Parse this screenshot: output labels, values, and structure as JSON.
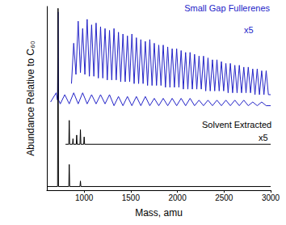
{
  "chart_data": {
    "type": "line",
    "x_label": "Mass, amu",
    "y_label": "Abundance Relative to C₆₀",
    "xlim": [
      600,
      3000
    ],
    "xticks": [
      1000,
      1500,
      2000,
      2500,
      3000
    ],
    "ylim": [
      0,
      100
    ],
    "tick_labels": "x",
    "grid": false,
    "annotations": [
      {
        "text": "Small Gap Fullerenes",
        "color": "#2323c8"
      },
      {
        "text": "x5",
        "color": "#2323c8"
      },
      {
        "text": "Solvent Extracted",
        "color": "#000000"
      },
      {
        "text": "x5",
        "color": "#000000"
      }
    ],
    "series": [
      {
        "color": "#2323c8",
        "x": [
          864,
          888,
          912,
          936,
          960,
          984,
          1008,
          1032,
          1056,
          1080,
          1104,
          1128,
          1152,
          1176,
          1200,
          1224,
          1248,
          1272,
          1296,
          1320,
          1344,
          1368,
          1392,
          1416,
          1440,
          1464,
          1488,
          1512,
          1536,
          1560,
          1584,
          1608,
          1632,
          1656,
          1680,
          1704,
          1728,
          1752,
          1776,
          1800,
          1824,
          1848,
          1872,
          1896,
          1920,
          1944,
          1968,
          1992,
          2016,
          2040,
          2064,
          2088,
          2112,
          2136,
          2160,
          2184,
          2208,
          2232,
          2256,
          2280,
          2304,
          2328,
          2352,
          2376,
          2400,
          2424,
          2448,
          2472,
          2496,
          2520,
          2544,
          2568,
          2592,
          2616,
          2640,
          2664,
          2688,
          2712,
          2736,
          2760,
          2784,
          2808,
          2832,
          2856,
          2880,
          2904,
          2928,
          2952,
          2976,
          3000
        ],
        "values": [
          58,
          80,
          63,
          92,
          64,
          88,
          63,
          93,
          62,
          90,
          62,
          91,
          61,
          89,
          61,
          88,
          60,
          87,
          60,
          88,
          60,
          86,
          59,
          85,
          59,
          84,
          59,
          85,
          58,
          83,
          58,
          82,
          58,
          81,
          57,
          82,
          57,
          80,
          57,
          79,
          57,
          79,
          56,
          78,
          56,
          77,
          56,
          77,
          56,
          76,
          55,
          75,
          55,
          75,
          55,
          74,
          55,
          73,
          55,
          73,
          54,
          72,
          54,
          71,
          54,
          71,
          54,
          70,
          54,
          69,
          53,
          69,
          53,
          68,
          53,
          68,
          53,
          67,
          53,
          67,
          53,
          66,
          52,
          66,
          52,
          65,
          52,
          65,
          52,
          52
        ]
      },
      {
        "color": "#2323c8",
        "x": [
          640,
          700,
          714,
          720,
          726,
          744,
          792,
          840,
          888,
          936,
          984,
          1032,
          1080,
          1128,
          1176,
          1224,
          1272,
          1320,
          1368,
          1416,
          1464,
          1512,
          1560,
          1608,
          1656,
          1704,
          1752,
          1800,
          1848,
          1896,
          1944,
          1992,
          2040,
          2088,
          2136,
          2184,
          2232,
          2280,
          2328,
          2376,
          2424,
          2472,
          2520,
          2568,
          2616,
          2664,
          2712,
          2760,
          2808,
          2856,
          2904,
          2952,
          3000
        ],
        "values": [
          48,
          53,
          49,
          97,
          49,
          47,
          52,
          47,
          53,
          47,
          53,
          47,
          52,
          47,
          52,
          47,
          52,
          46,
          51,
          46,
          51,
          46,
          51,
          46,
          51,
          46,
          50,
          46,
          50,
          46,
          50,
          46,
          50,
          46,
          50,
          46,
          49,
          46,
          49,
          46,
          49,
          46,
          49,
          46,
          49,
          46,
          49,
          46,
          48,
          46,
          48,
          46,
          46
        ]
      },
      {
        "color": "#000000",
        "x": [
          800,
          835,
          840,
          845,
          875,
          880,
          885,
          915,
          920,
          925,
          955,
          960,
          965,
          995,
          1000,
          1005,
          3000
        ],
        "values": [
          25,
          25,
          38,
          25,
          25,
          28,
          25,
          25,
          30,
          25,
          25,
          33,
          25,
          25,
          29,
          25,
          25
        ]
      },
      {
        "color": "#000000",
        "x": [
          600,
          715,
          720,
          725,
          835,
          840,
          845,
          955,
          960,
          965,
          3000
        ],
        "values": [
          2,
          2,
          99,
          2,
          2,
          14,
          2,
          2,
          5,
          2,
          2
        ]
      }
    ]
  }
}
